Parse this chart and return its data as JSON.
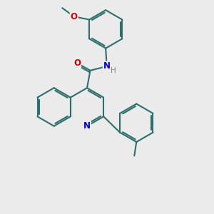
{
  "bg_color": "#ebebeb",
  "bond_color": "#2d6e6e",
  "bond_width": 1.5,
  "atom_colors": {
    "N": "#0000cc",
    "O": "#cc0000",
    "C": "#2d6e6e",
    "H": "#888888"
  },
  "font_size": 8.5
}
